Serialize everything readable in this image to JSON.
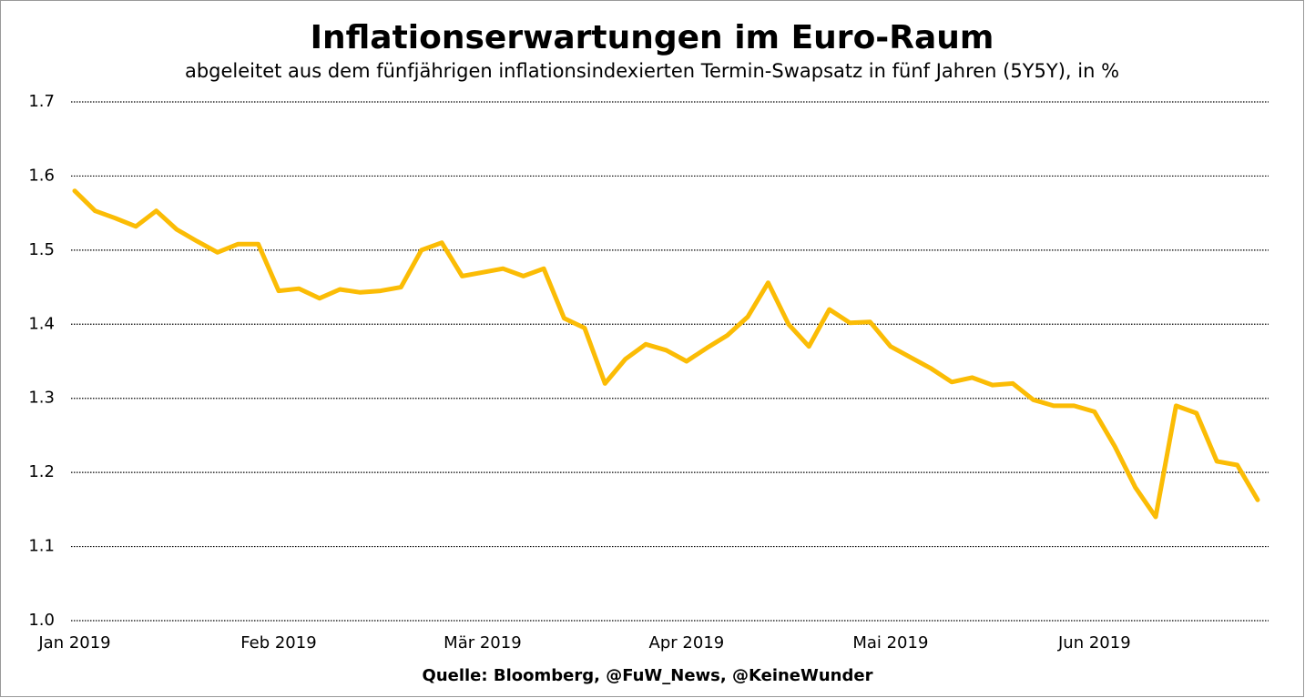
{
  "chart_data": {
    "type": "line",
    "title": "Inflationserwartungen im Euro-Raum",
    "subtitle": "abgeleitet aus dem fünfjährigen inflationsindexierten Termin-Swapsatz in fünf Jahren (5Y5Y), in %",
    "source": "Quelle: Bloomberg, @FuW_News, @KeineWunder",
    "categories": [
      "Jan 2019",
      null,
      null,
      null,
      null,
      null,
      null,
      null,
      null,
      null,
      "Feb 2019",
      null,
      null,
      null,
      null,
      null,
      null,
      null,
      null,
      null,
      "Mär 2019",
      null,
      null,
      null,
      null,
      null,
      null,
      null,
      null,
      null,
      "Apr 2019",
      null,
      null,
      null,
      null,
      null,
      null,
      null,
      null,
      null,
      "Mai 2019",
      null,
      null,
      null,
      null,
      null,
      null,
      null,
      null,
      null,
      "Jun 2019",
      null,
      null,
      null,
      null,
      null,
      null,
      null,
      null
    ],
    "series": [
      {
        "name": "5Y5Y",
        "color": "#fbbc05",
        "values": [
          1.58,
          1.553,
          1.543,
          1.532,
          1.553,
          1.528,
          1.512,
          1.497,
          1.508,
          1.508,
          1.445,
          1.448,
          1.435,
          1.447,
          1.443,
          1.445,
          1.45,
          1.5,
          1.51,
          1.465,
          1.47,
          1.475,
          1.465,
          1.475,
          1.408,
          1.395,
          1.32,
          1.353,
          1.373,
          1.365,
          1.35,
          1.368,
          1.385,
          1.41,
          1.456,
          1.4,
          1.37,
          1.42,
          1.402,
          1.403,
          1.37,
          1.355,
          1.34,
          1.322,
          1.328,
          1.318,
          1.32,
          1.298,
          1.29,
          1.29,
          1.282,
          1.235,
          1.18,
          1.14,
          1.29,
          1.28,
          1.215,
          1.21,
          1.163
        ]
      }
    ],
    "ylim": [
      1.0,
      1.7
    ],
    "yticks": [
      {
        "value": 1.0,
        "label": "1.0"
      },
      1.1,
      1.2,
      1.3,
      1.4,
      1.5,
      1.6,
      1.7
    ],
    "grid": true
  }
}
